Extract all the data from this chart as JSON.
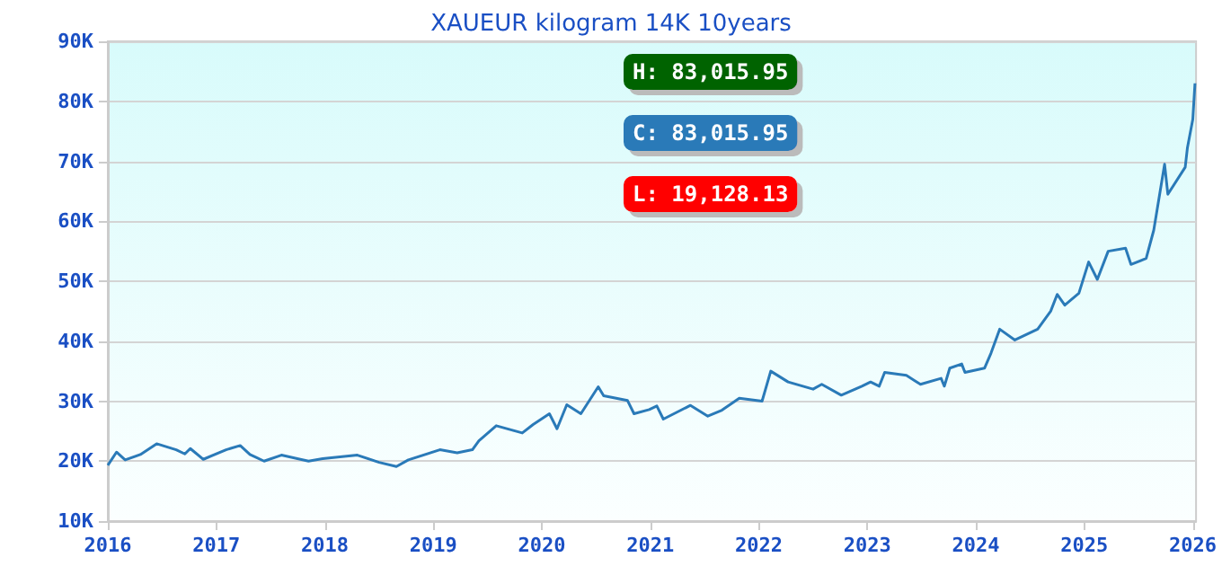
{
  "chart_data": {
    "type": "line",
    "title": "XAUEUR kilogram 14K 10years",
    "x": [
      2016.0,
      2016.08,
      2016.16,
      2016.3,
      2016.45,
      2016.63,
      2016.71,
      2016.76,
      2016.88,
      2017.09,
      2017.22,
      2017.31,
      2017.44,
      2017.6,
      2017.85,
      2017.98,
      2018.3,
      2018.5,
      2018.66,
      2018.77,
      2019.06,
      2019.22,
      2019.36,
      2019.42,
      2019.58,
      2019.82,
      2019.92,
      2020.07,
      2020.14,
      2020.23,
      2020.36,
      2020.52,
      2020.57,
      2020.79,
      2020.85,
      2020.99,
      2021.06,
      2021.12,
      2021.37,
      2021.53,
      2021.66,
      2021.82,
      2022.03,
      2022.11,
      2022.27,
      2022.5,
      2022.58,
      2022.76,
      2022.95,
      2023.03,
      2023.11,
      2023.16,
      2023.36,
      2023.49,
      2023.68,
      2023.71,
      2023.76,
      2023.87,
      2023.9,
      2024.08,
      2024.14,
      2024.22,
      2024.36,
      2024.57,
      2024.69,
      2024.75,
      2024.82,
      2024.95,
      2025.04,
      2025.12,
      2025.22,
      2025.38,
      2025.43,
      2025.57,
      2025.64,
      2025.74,
      2025.77,
      2025.93,
      2025.95,
      2026.0,
      2026.02
    ],
    "series": [
      {
        "color": "#2a7ab8",
        "values": [
          19300,
          21500,
          20200,
          21100,
          22900,
          21900,
          21200,
          22100,
          20300,
          21900,
          22600,
          21100,
          20000,
          21000,
          20000,
          20400,
          21000,
          19800,
          19100,
          20200,
          21900,
          21400,
          21900,
          23400,
          25900,
          24700,
          26100,
          27900,
          25400,
          29400,
          27900,
          32400,
          30900,
          30100,
          27900,
          28600,
          29200,
          27000,
          29300,
          27500,
          28500,
          30500,
          30000,
          35000,
          33200,
          32000,
          32800,
          31000,
          32500,
          33200,
          32500,
          34800,
          34300,
          32800,
          33800,
          32500,
          35500,
          36200,
          34800,
          35500,
          38000,
          42000,
          40200,
          42000,
          45000,
          47800,
          46000,
          48000,
          53200,
          50300,
          55000,
          55500,
          52800,
          53800,
          58500,
          69500,
          64500,
          69000,
          72200,
          77000,
          83000
        ]
      }
    ],
    "xlim": [
      2016,
      2026.03
    ],
    "xticks": [
      2016,
      2017,
      2018,
      2019,
      2020,
      2021,
      2022,
      2023,
      2024,
      2025,
      2026
    ],
    "ylim": [
      10000,
      90000
    ],
    "yticks": [
      {
        "value": 10000,
        "label": "10K"
      },
      {
        "value": 20000,
        "label": "20K"
      },
      {
        "value": 30000,
        "label": "30K"
      },
      {
        "value": 40000,
        "label": "40K"
      },
      {
        "value": 50000,
        "label": "50K"
      },
      {
        "value": 60000,
        "label": "60K"
      },
      {
        "value": 70000,
        "label": "70K"
      },
      {
        "value": 80000,
        "label": "80K"
      },
      {
        "value": 90000,
        "label": "90K"
      }
    ],
    "annotations": [
      "H: 83,015.95",
      "C: 83,015.95",
      "L: 19,128.13"
    ],
    "grid": "y",
    "marker": "none",
    "line_style": "solid"
  }
}
